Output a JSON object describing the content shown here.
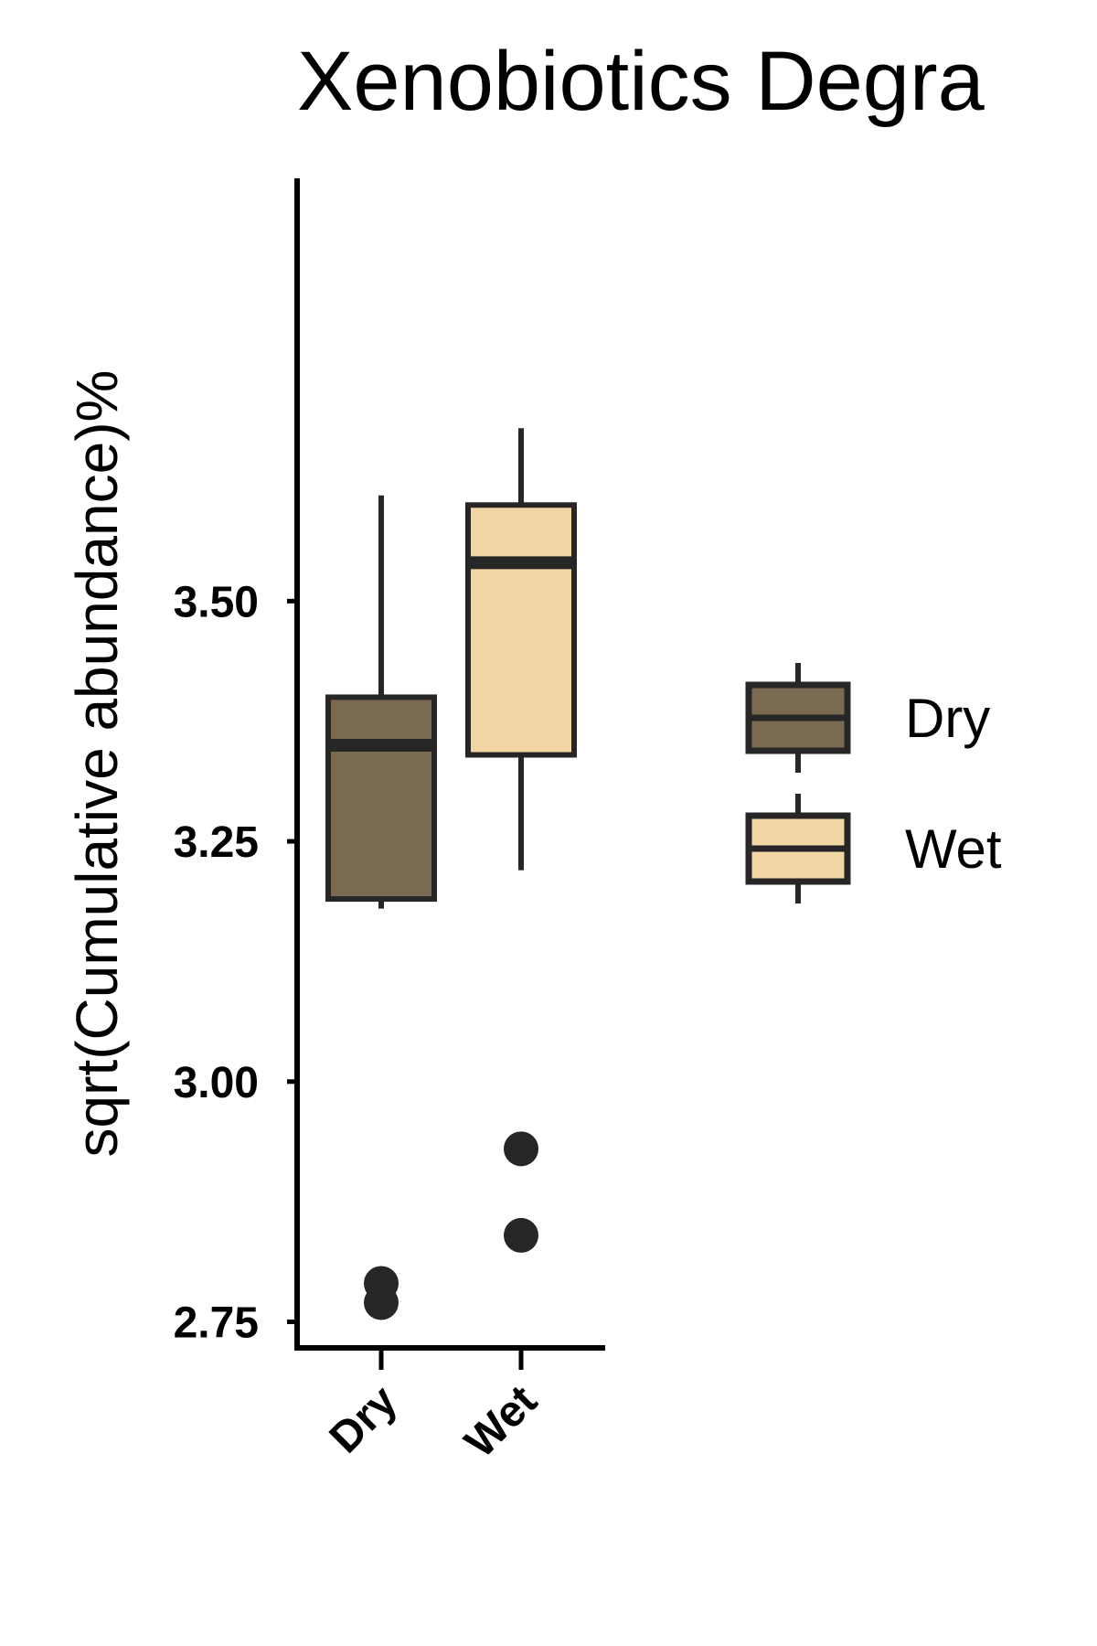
{
  "chart_data": {
    "type": "boxplot",
    "title": "Xenobiotics Degra",
    "ylabel": "sqrt(Cumulative abundance)%",
    "xlabel": "",
    "categories": [
      "Dry",
      "Wet"
    ],
    "ylim": [
      2.72,
      3.94
    ],
    "yticks": [
      2.75,
      3.0,
      3.25,
      3.5
    ],
    "ytick_labels": [
      "2.75",
      "3.00",
      "3.25",
      "3.50"
    ],
    "legend_position": "right",
    "grid": false,
    "series": [
      {
        "name": "Dry",
        "color": "#7a6a52",
        "lower_whisker": 3.18,
        "q1": 3.19,
        "median": 3.35,
        "q3": 3.4,
        "upper_whisker": 3.61,
        "outliers": [
          2.79,
          2.77
        ]
      },
      {
        "name": "Wet",
        "color": "#f2d7a5",
        "lower_whisker": 3.22,
        "q1": 3.34,
        "median": 3.54,
        "q3": 3.6,
        "upper_whisker": 3.68,
        "outliers": [
          2.93,
          2.84
        ]
      }
    ],
    "outline_color": "#262626"
  }
}
